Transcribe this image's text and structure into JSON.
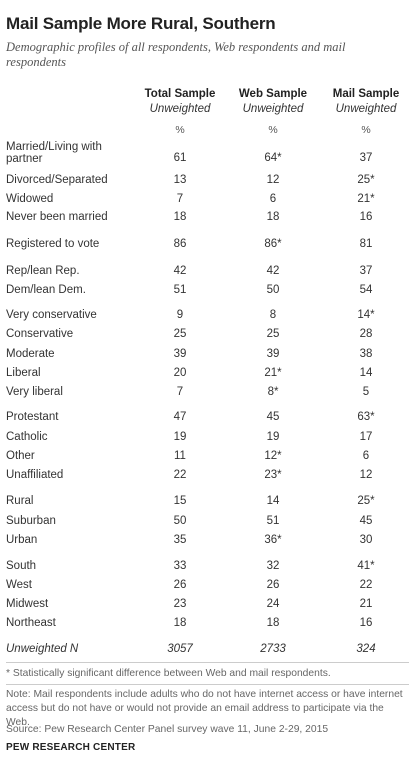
{
  "title": "Mail Sample More Rural, Southern",
  "subtitle": "Demographic profiles of all respondents, Web respondents and mail respondents",
  "columns": [
    {
      "name": "Total Sample",
      "sub": "Unweighted",
      "unit": "%"
    },
    {
      "name": "Web Sample",
      "sub": "Unweighted",
      "unit": "%"
    },
    {
      "name": "Mail Sample",
      "sub": "Unweighted",
      "unit": "%"
    }
  ],
  "rows": [
    {
      "label": "Married/Living with partner",
      "values": [
        "61",
        "64*",
        "37"
      ]
    },
    {
      "label": "Divorced/Separated",
      "values": [
        "13",
        "12",
        "25*"
      ]
    },
    {
      "label": "Widowed",
      "values": [
        "7",
        "6",
        "21*"
      ]
    },
    {
      "label": "Never been married",
      "values": [
        "18",
        "18",
        "16"
      ]
    },
    {
      "label": "Registered to vote",
      "values": [
        "86",
        "86*",
        "81"
      ]
    },
    {
      "label": "Rep/lean Rep.",
      "values": [
        "42",
        "42",
        "37"
      ]
    },
    {
      "label": "Dem/lean Dem.",
      "values": [
        "51",
        "50",
        "54"
      ]
    },
    {
      "label": "Very conservative",
      "values": [
        "9",
        "8",
        "14*"
      ]
    },
    {
      "label": "Conservative",
      "values": [
        "25",
        "25",
        "28"
      ]
    },
    {
      "label": "Moderate",
      "values": [
        "39",
        "39",
        "38"
      ]
    },
    {
      "label": "Liberal",
      "values": [
        "20",
        "21*",
        "14"
      ]
    },
    {
      "label": "Very liberal",
      "values": [
        "7",
        "8*",
        "5"
      ]
    },
    {
      "label": "Protestant",
      "values": [
        "47",
        "45",
        "63*"
      ]
    },
    {
      "label": "Catholic",
      "values": [
        "19",
        "19",
        "17"
      ]
    },
    {
      "label": "Other",
      "values": [
        "11",
        "12*",
        "6"
      ]
    },
    {
      "label": "Unaffiliated",
      "values": [
        "22",
        "23*",
        "12"
      ]
    },
    {
      "label": "Rural",
      "values": [
        "15",
        "14",
        "25*"
      ]
    },
    {
      "label": "Suburban",
      "values": [
        "50",
        "51",
        "45"
      ]
    },
    {
      "label": "Urban",
      "values": [
        "35",
        "36*",
        "30"
      ]
    },
    {
      "label": "South",
      "values": [
        "33",
        "32",
        "41*"
      ]
    },
    {
      "label": "West",
      "values": [
        "26",
        "26",
        "22"
      ]
    },
    {
      "label": "Midwest",
      "values": [
        "23",
        "24",
        "21"
      ]
    },
    {
      "label": "Northeast",
      "values": [
        "18",
        "18",
        "16"
      ]
    },
    {
      "label": "Unweighted N",
      "values": [
        "3057",
        "2733",
        "324"
      ]
    }
  ],
  "footnote_sig": "* Statistically significant difference between Web and mail respondents.",
  "footnote_note": "Note: Mail respondents include adults who do not have internet access or have internet access but do not have or would not provide an email address to participate via the Web.",
  "source": "Source: Pew Research Center Panel survey wave 11, June 2-29, 2015",
  "brand": "PEW RESEARCH CENTER"
}
